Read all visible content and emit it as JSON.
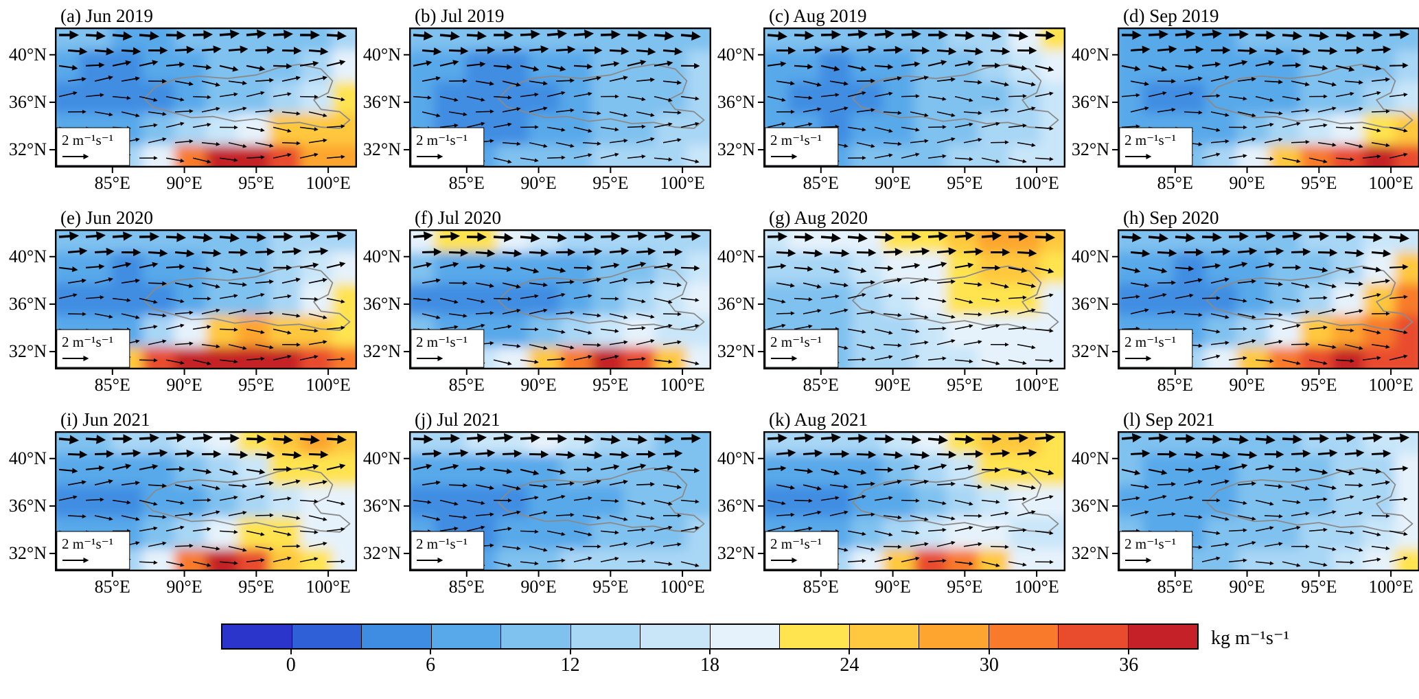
{
  "chart_data": {
    "type": "heatmap",
    "subtype": "filled-contour maps with vector arrows, 3x4 panel grid",
    "x_range": [
      81,
      102
    ],
    "y_range": [
      30.5,
      42.3
    ],
    "x_ticks": {
      "values": [
        85,
        90,
        95,
        100
      ],
      "labels": [
        "85°E",
        "90°E",
        "95°E",
        "100°E"
      ]
    },
    "y_ticks": {
      "values": [
        40,
        36,
        32
      ],
      "labels": [
        "40°N",
        "36°N",
        "32°N"
      ]
    },
    "colorbar": {
      "boundaries": [
        -3,
        0,
        3,
        6,
        9,
        12,
        15,
        18,
        21,
        24,
        27,
        30,
        33,
        36,
        39
      ],
      "colors": [
        "#2b35cc",
        "#3060d8",
        "#3f8de2",
        "#58a9ea",
        "#7fc1ef",
        "#a8d6f5",
        "#c9e6f9",
        "#e6f2fb",
        "#ffe34f",
        "#ffc83e",
        "#fda52f",
        "#f87a2a",
        "#e94b2d",
        "#c52128"
      ],
      "tick_labels": [
        "0",
        "6",
        "12",
        "18",
        "24",
        "30",
        "36"
      ],
      "unit": "kg m⁻¹s⁻¹"
    },
    "vector_key": {
      "text": "2 m⁻¹s⁻¹"
    },
    "vectors": {
      "rows": 9,
      "cols": 11,
      "color": "#000000",
      "direction": "predominantly eastward"
    },
    "basin_outline": [
      [
        88,
        37.3
      ],
      [
        89.5,
        38
      ],
      [
        91,
        38.2
      ],
      [
        93,
        38
      ],
      [
        95,
        38.3
      ],
      [
        96.5,
        38.9
      ],
      [
        98,
        39.2
      ],
      [
        99.5,
        38.8
      ],
      [
        100.3,
        37.8
      ],
      [
        100,
        36.8
      ],
      [
        99,
        36.2
      ],
      [
        99.5,
        35.4
      ],
      [
        100.8,
        35.2
      ],
      [
        101.5,
        34.5
      ],
      [
        100.8,
        33.8
      ],
      [
        99.5,
        33.9
      ],
      [
        98,
        34.3
      ],
      [
        96.5,
        34.2
      ],
      [
        95,
        34.6
      ],
      [
        93.5,
        34.4
      ],
      [
        92,
        34.8
      ],
      [
        90.5,
        34.7
      ],
      [
        89,
        35.2
      ],
      [
        87.8,
        35.6
      ],
      [
        87.2,
        36.3
      ]
    ],
    "panels": [
      {
        "label": "(a) Jun 2019",
        "values": [
          [
            9,
            9,
            8,
            8,
            9,
            10,
            10,
            10,
            11,
            12
          ],
          [
            7,
            5,
            5,
            6,
            7,
            9,
            10,
            11,
            13,
            19
          ],
          [
            5,
            4,
            4,
            5,
            7,
            9,
            10,
            12,
            17,
            22
          ],
          [
            7,
            6,
            7,
            9,
            12,
            16,
            20,
            24,
            26,
            24
          ],
          [
            8,
            9,
            12,
            20,
            32,
            38,
            37,
            33,
            29,
            27
          ]
        ]
      },
      {
        "label": "(b) Jul 2019",
        "values": [
          [
            10,
            9,
            9,
            9,
            10,
            11,
            11,
            11,
            11,
            11
          ],
          [
            8,
            6,
            5,
            5,
            6,
            8,
            9,
            10,
            11,
            12
          ],
          [
            7,
            4,
            3,
            4,
            5,
            7,
            9,
            10,
            11,
            12
          ],
          [
            7,
            5,
            4,
            5,
            6,
            8,
            10,
            11,
            12,
            13
          ],
          [
            9,
            8,
            8,
            9,
            10,
            11,
            12,
            13,
            14,
            15
          ]
        ]
      },
      {
        "label": "(c) Aug 2019",
        "values": [
          [
            9,
            9,
            9,
            10,
            10,
            11,
            12,
            14,
            20,
            23
          ],
          [
            7,
            6,
            5,
            6,
            8,
            9,
            10,
            12,
            15,
            18
          ],
          [
            6,
            4,
            4,
            5,
            7,
            9,
            10,
            11,
            13,
            15
          ],
          [
            8,
            6,
            5,
            6,
            8,
            9,
            10,
            12,
            14,
            16
          ],
          [
            10,
            9,
            8,
            9,
            10,
            11,
            12,
            14,
            16,
            17
          ]
        ]
      },
      {
        "label": "(d) Sep 2019",
        "values": [
          [
            8,
            8,
            8,
            8,
            9,
            9,
            10,
            10,
            11,
            11
          ],
          [
            7,
            6,
            6,
            6,
            7,
            8,
            9,
            10,
            11,
            12
          ],
          [
            6,
            5,
            5,
            6,
            7,
            8,
            9,
            11,
            13,
            15
          ],
          [
            7,
            7,
            7,
            8,
            10,
            13,
            16,
            19,
            22,
            24
          ],
          [
            9,
            9,
            10,
            14,
            20,
            26,
            31,
            34,
            36,
            34
          ]
        ]
      },
      {
        "label": "(e) Jun 2020",
        "values": [
          [
            10,
            9,
            9,
            9,
            10,
            11,
            11,
            12,
            13,
            14
          ],
          [
            8,
            6,
            5,
            6,
            7,
            9,
            10,
            12,
            15,
            19
          ],
          [
            4,
            3,
            3,
            4,
            6,
            9,
            11,
            14,
            19,
            22
          ],
          [
            6,
            6,
            8,
            12,
            18,
            24,
            27,
            26,
            24,
            22
          ],
          [
            12,
            16,
            24,
            33,
            38,
            39,
            38,
            36,
            33,
            30
          ]
        ]
      },
      {
        "label": "(f) Jul 2020",
        "values": [
          [
            19,
            21,
            22,
            20,
            16,
            13,
            12,
            12,
            13,
            14
          ],
          [
            9,
            7,
            6,
            6,
            7,
            8,
            9,
            11,
            14,
            17
          ],
          [
            5,
            4,
            3,
            4,
            5,
            7,
            9,
            12,
            15,
            18
          ],
          [
            9,
            8,
            7,
            8,
            10,
            13,
            16,
            18,
            17,
            16
          ],
          [
            13,
            14,
            15,
            18,
            24,
            32,
            37,
            33,
            24,
            20
          ]
        ]
      },
      {
        "label": "(g) Aug 2020",
        "values": [
          [
            16,
            18,
            19,
            20,
            21,
            23,
            26,
            28,
            27,
            24
          ],
          [
            12,
            13,
            14,
            16,
            18,
            20,
            22,
            24,
            24,
            22
          ],
          [
            9,
            10,
            11,
            13,
            16,
            19,
            21,
            22,
            21,
            20
          ],
          [
            10,
            10,
            11,
            12,
            14,
            17,
            19,
            20,
            19,
            19
          ],
          [
            14,
            12,
            11,
            12,
            13,
            15,
            17,
            18,
            19,
            20
          ]
        ]
      },
      {
        "label": "(h) Sep 2020",
        "values": [
          [
            9,
            9,
            9,
            10,
            10,
            11,
            12,
            13,
            15,
            17
          ],
          [
            7,
            6,
            5,
            6,
            7,
            9,
            11,
            14,
            19,
            24
          ],
          [
            5,
            4,
            4,
            5,
            7,
            10,
            14,
            19,
            26,
            30
          ],
          [
            7,
            7,
            8,
            10,
            14,
            19,
            24,
            28,
            31,
            33
          ],
          [
            10,
            11,
            14,
            19,
            26,
            32,
            35,
            36,
            35,
            34
          ]
        ]
      },
      {
        "label": "(i) Jun 2021",
        "values": [
          [
            11,
            11,
            12,
            13,
            15,
            18,
            22,
            26,
            27,
            25
          ],
          [
            8,
            7,
            7,
            8,
            10,
            13,
            17,
            21,
            23,
            22
          ],
          [
            5,
            4,
            4,
            6,
            8,
            11,
            14,
            17,
            19,
            20
          ],
          [
            7,
            6,
            7,
            9,
            13,
            18,
            22,
            21,
            19,
            18
          ],
          [
            9,
            10,
            13,
            20,
            30,
            36,
            33,
            26,
            21,
            19
          ]
        ]
      },
      {
        "label": "(j) Jul 2021",
        "values": [
          [
            12,
            13,
            15,
            17,
            18,
            16,
            13,
            12,
            11,
            11
          ],
          [
            8,
            7,
            7,
            7,
            8,
            9,
            10,
            10,
            10,
            11
          ],
          [
            5,
            4,
            4,
            5,
            6,
            7,
            8,
            9,
            10,
            11
          ],
          [
            6,
            5,
            5,
            6,
            7,
            8,
            9,
            10,
            11,
            12
          ],
          [
            9,
            8,
            8,
            9,
            10,
            12,
            13,
            13,
            13,
            14
          ]
        ]
      },
      {
        "label": "(k) Aug 2021",
        "values": [
          [
            12,
            12,
            13,
            14,
            16,
            19,
            23,
            26,
            25,
            22
          ],
          [
            8,
            7,
            7,
            8,
            10,
            13,
            17,
            21,
            22,
            21
          ],
          [
            5,
            4,
            5,
            6,
            8,
            11,
            14,
            17,
            19,
            19
          ],
          [
            7,
            6,
            7,
            9,
            12,
            16,
            19,
            18,
            17,
            17
          ],
          [
            10,
            11,
            13,
            18,
            26,
            33,
            30,
            24,
            20,
            18
          ]
        ]
      },
      {
        "label": "(l) Sep 2021",
        "values": [
          [
            10,
            10,
            10,
            10,
            11,
            11,
            12,
            13,
            15,
            17
          ],
          [
            9,
            8,
            8,
            8,
            9,
            10,
            11,
            12,
            14,
            18
          ],
          [
            8,
            7,
            7,
            8,
            9,
            10,
            11,
            12,
            14,
            19
          ],
          [
            9,
            8,
            8,
            9,
            10,
            11,
            12,
            13,
            16,
            20
          ],
          [
            11,
            10,
            10,
            11,
            12,
            13,
            14,
            16,
            18,
            21
          ]
        ]
      }
    ]
  }
}
